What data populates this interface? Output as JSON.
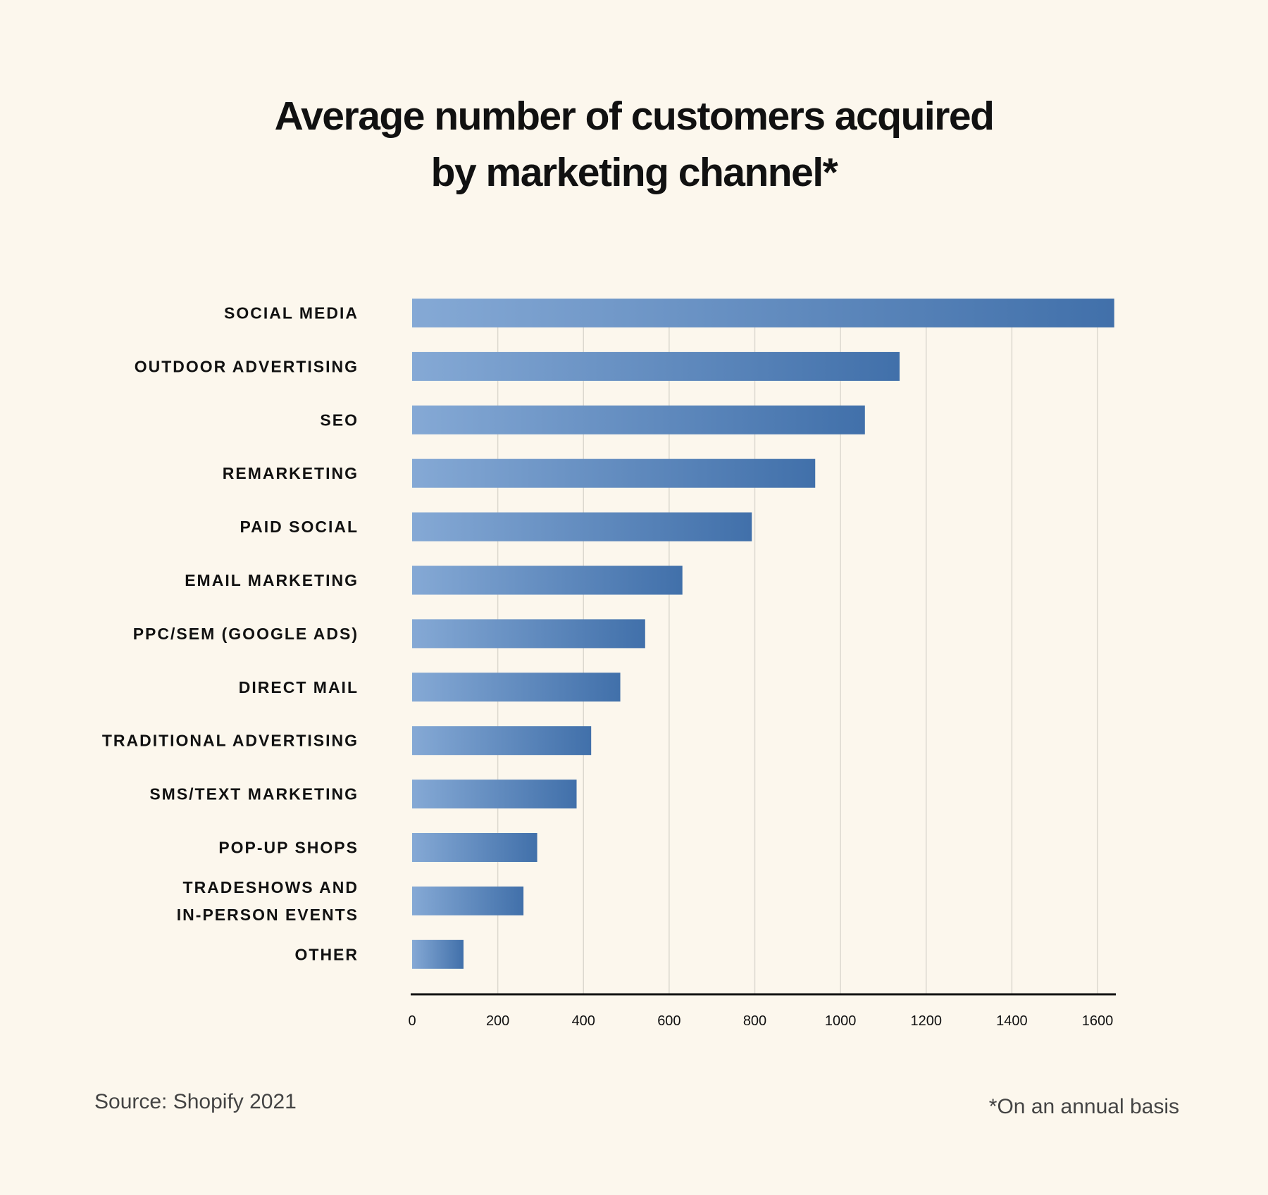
{
  "chart_data": {
    "type": "bar",
    "orientation": "horizontal",
    "title": "Average number of customers acquired by marketing channel*",
    "title_lines": [
      "Average number of customers acquired",
      "by marketing channel*"
    ],
    "categories": [
      "SOCIAL MEDIA",
      "OUTDOOR ADVERTISING",
      "SEO",
      "REMARKETING",
      "PAID SOCIAL",
      "EMAIL MARKETING",
      "PPC/SEM (GOOGLE ADS)",
      "DIRECT MAIL",
      "TRADITIONAL ADVERTISING",
      "SMS/TEXT MARKETING",
      "POP-UP SHOPS",
      "TRADESHOWS AND IN-PERSON EVENTS",
      "OTHER"
    ],
    "category_lines": [
      [
        "SOCIAL MEDIA"
      ],
      [
        "OUTDOOR ADVERTISING"
      ],
      [
        "SEO"
      ],
      [
        "REMARKETING"
      ],
      [
        "PAID SOCIAL"
      ],
      [
        "EMAIL MARKETING"
      ],
      [
        "PPC/SEM (GOOGLE ADS)"
      ],
      [
        "DIRECT MAIL"
      ],
      [
        "TRADITIONAL ADVERTISING"
      ],
      [
        "SMS/TEXT MARKETING"
      ],
      [
        "POP-UP SHOPS"
      ],
      [
        "TRADESHOWS AND",
        "IN-PERSON EVENTS"
      ],
      [
        "OTHER"
      ]
    ],
    "values": [
      1639,
      1138,
      1057,
      941,
      793,
      631,
      544,
      486,
      418,
      384,
      292,
      260,
      120
    ],
    "xlabel": "",
    "ylabel": "",
    "xlim": [
      0,
      1640
    ],
    "xticks": [
      0,
      200,
      400,
      600,
      800,
      1000,
      1200,
      1400,
      1600
    ],
    "grid": true,
    "colors": {
      "bar_start": "#85a9d5",
      "bar_end": "#4170aa",
      "grid": "#dcd8cf",
      "axis": "#111111",
      "background": "#fcf7ed"
    }
  },
  "source": "Source: Shopify 2021",
  "footnote": "*On an annual basis"
}
